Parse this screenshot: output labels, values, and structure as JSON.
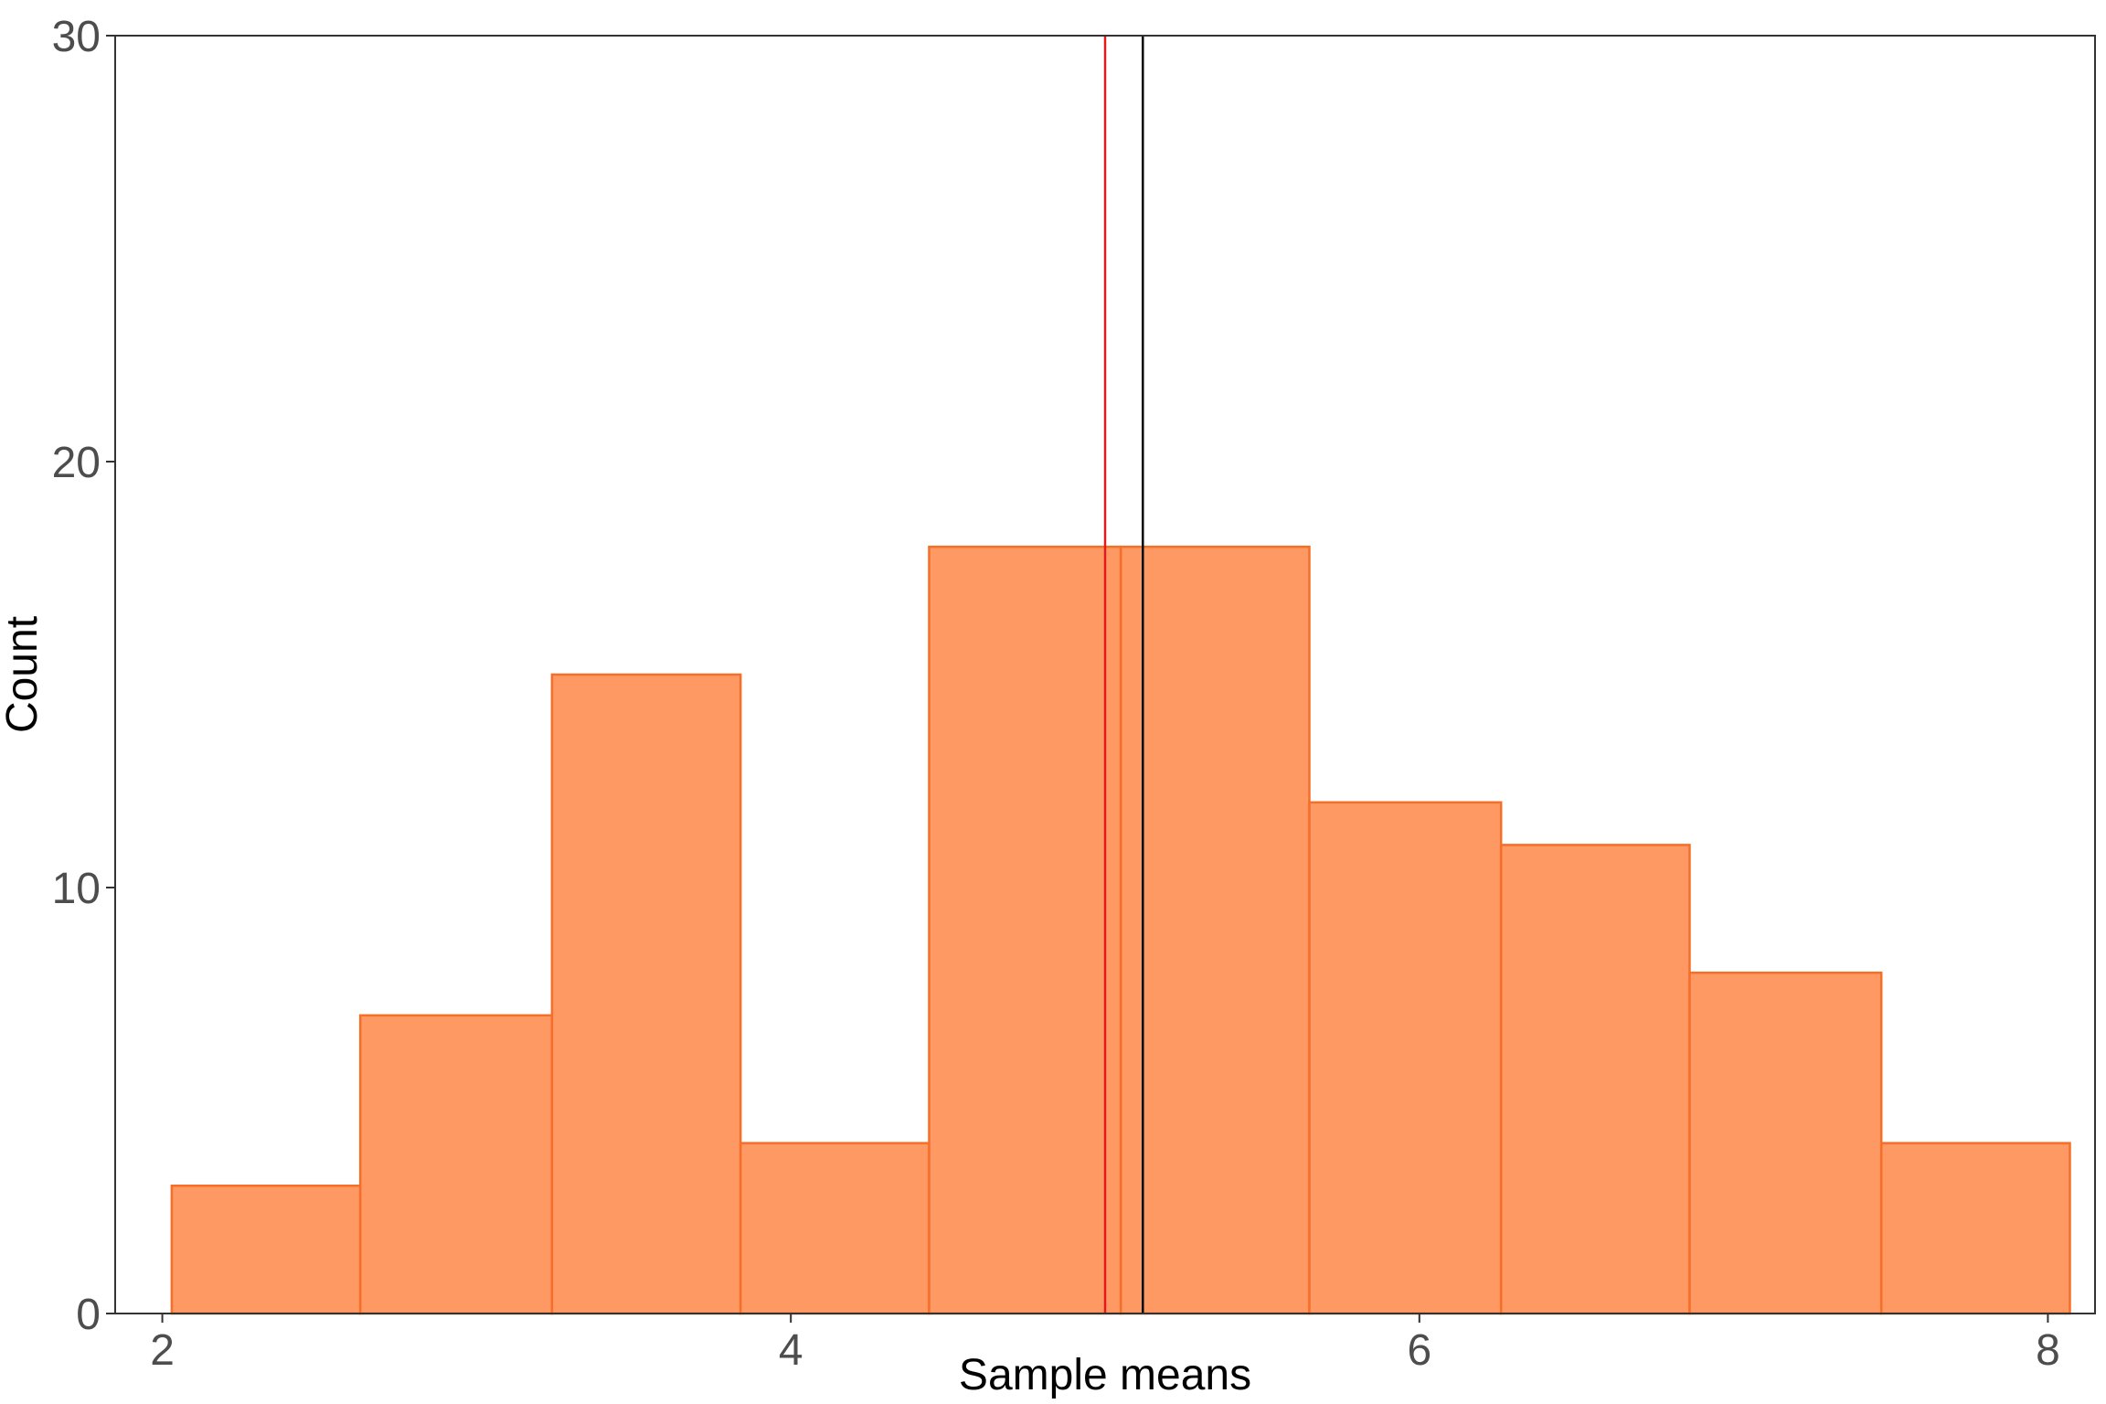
{
  "chart_data": {
    "type": "bar",
    "xlabel": "Sample means",
    "ylabel": "Count",
    "xlim": [
      1.85,
      8.15
    ],
    "ylim": [
      0,
      30
    ],
    "x_ticks": [
      2,
      4,
      6,
      8
    ],
    "y_ticks": [
      0,
      10,
      20,
      30
    ],
    "grid": false,
    "bins": [
      {
        "start": 2.03,
        "end": 2.63,
        "count": 3
      },
      {
        "start": 2.63,
        "end": 3.24,
        "count": 7
      },
      {
        "start": 3.24,
        "end": 3.84,
        "count": 15
      },
      {
        "start": 3.84,
        "end": 4.44,
        "count": 4
      },
      {
        "start": 4.44,
        "end": 5.05,
        "count": 18
      },
      {
        "start": 5.05,
        "end": 5.65,
        "count": 18
      },
      {
        "start": 5.65,
        "end": 6.26,
        "count": 12
      },
      {
        "start": 6.26,
        "end": 6.86,
        "count": 11
      },
      {
        "start": 6.86,
        "end": 7.47,
        "count": 8
      },
      {
        "start": 7.47,
        "end": 8.07,
        "count": 4
      }
    ],
    "vlines": [
      {
        "x": 5.0,
        "color": "#e31a1c"
      },
      {
        "x": 5.12,
        "color": "#000000"
      }
    ],
    "colors": {
      "bar_fill": "#fe9963",
      "bar_stroke": "#f66e28",
      "panel_border": "#333333",
      "tick_text": "#4d4d4d"
    }
  }
}
